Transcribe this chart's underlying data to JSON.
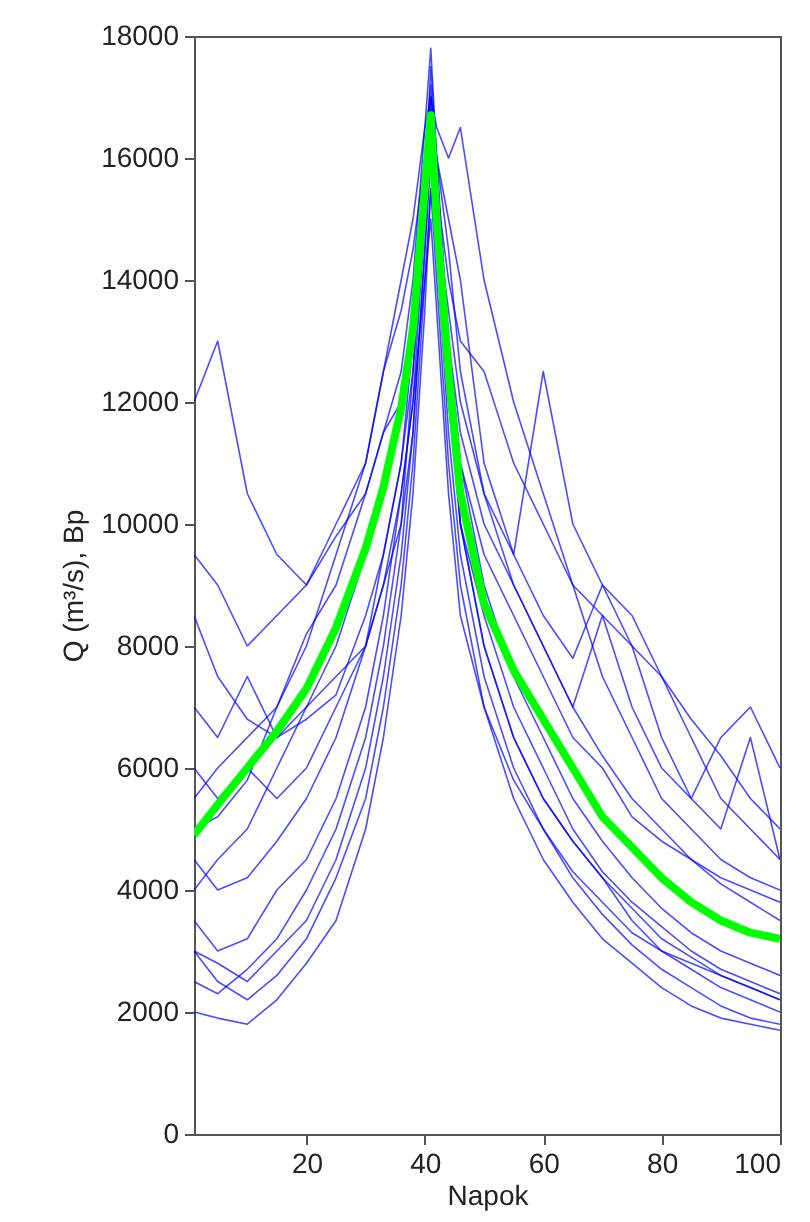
{
  "chart_data": {
    "type": "line",
    "xlabel": "Napok",
    "ylabel": "Q (m³/s), Bp",
    "xlim": [
      1,
      100
    ],
    "xticks": [
      20,
      40,
      60,
      80,
      100
    ],
    "ylim": [
      0,
      18000
    ],
    "yticks": [
      0,
      2000,
      4000,
      6000,
      8000,
      10000,
      12000,
      14000,
      16000,
      18000
    ],
    "grid": false,
    "marker": "none",
    "line_style": "solid",
    "x": [
      1,
      5,
      10,
      15,
      20,
      25,
      30,
      33,
      36,
      38,
      40,
      41,
      42,
      44,
      46,
      50,
      55,
      60,
      65,
      70,
      75,
      80,
      85,
      90,
      95,
      100
    ],
    "series": [
      {
        "color": "#0000ff",
        "values": [
          12000,
          13000,
          10500,
          9500,
          9000,
          9800,
          10500,
          11500,
          12500,
          14000,
          16500,
          17800,
          16000,
          13000,
          11000,
          9500,
          8500,
          7500,
          6500,
          6000,
          5200,
          4800,
          4500,
          4200,
          4000,
          3800
        ]
      },
      {
        "color": "#0000ff",
        "values": [
          3000,
          2800,
          2500,
          3000,
          3500,
          4500,
          6000,
          7500,
          9500,
          11500,
          14500,
          16000,
          14500,
          12000,
          10000,
          8000,
          6500,
          5500,
          4800,
          4200,
          3500,
          3000,
          2700,
          2400,
          2200,
          2000
        ]
      },
      {
        "color": "#0000ff",
        "values": [
          2000,
          1900,
          1800,
          2200,
          2800,
          3500,
          5000,
          6500,
          8500,
          10500,
          13500,
          15500,
          14000,
          11000,
          9000,
          7000,
          5500,
          4500,
          3800,
          3200,
          2800,
          2400,
          2100,
          1900,
          1800,
          1700
        ]
      },
      {
        "color": "#0000ff",
        "values": [
          8500,
          7500,
          6800,
          6500,
          7000,
          7500,
          8000,
          9000,
          10500,
          12000,
          15000,
          16500,
          15500,
          14000,
          13000,
          12500,
          11000,
          10000,
          9000,
          8500,
          8000,
          7500,
          6800,
          6200,
          5500,
          5000
        ]
      },
      {
        "color": "#0000ff",
        "values": [
          5500,
          6000,
          6500,
          7000,
          8000,
          9500,
          11000,
          12500,
          13500,
          14500,
          16000,
          17000,
          16500,
          16000,
          16500,
          14000,
          12000,
          10500,
          9000,
          7500,
          6500,
          5500,
          5000,
          4500,
          4200,
          4000
        ]
      },
      {
        "color": "#0000ff",
        "values": [
          4000,
          4500,
          5000,
          6000,
          7000,
          8000,
          9500,
          10500,
          12000,
          13000,
          15500,
          17500,
          16000,
          12500,
          10000,
          8500,
          7000,
          6000,
          5000,
          4300,
          3800,
          3400,
          3000,
          2700,
          2500,
          2300
        ]
      },
      {
        "color": "#0000ff",
        "values": [
          7000,
          6500,
          7500,
          6500,
          6800,
          7200,
          8500,
          9500,
          11000,
          12500,
          15000,
          16000,
          15000,
          13000,
          11500,
          10000,
          9000,
          8000,
          7000,
          8500,
          7000,
          6000,
          5500,
          5000,
          6500,
          4500
        ]
      },
      {
        "color": "#0000ff",
        "values": [
          3500,
          3000,
          3200,
          4000,
          4500,
          5500,
          7000,
          8500,
          10500,
          12000,
          14000,
          15000,
          13500,
          10500,
          8500,
          7000,
          5800,
          5000,
          4300,
          3800,
          3300,
          3000,
          2800,
          2600,
          2400,
          2200
        ]
      },
      {
        "color": "#0000ff",
        "values": [
          2500,
          2300,
          2700,
          3200,
          4000,
          5000,
          6500,
          8000,
          10000,
          12500,
          15500,
          17000,
          15000,
          12500,
          10000,
          8000,
          6500,
          5500,
          4800,
          4200,
          3700,
          3200,
          2900,
          2600,
          2400,
          2200
        ]
      },
      {
        "color": "#0000ff",
        "values": [
          6000,
          5500,
          6000,
          5500,
          6000,
          7000,
          8000,
          9000,
          10000,
          11500,
          14500,
          16200,
          15000,
          13500,
          12000,
          10500,
          9500,
          12500,
          10000,
          9000,
          8500,
          7500,
          6500,
          5500,
          5000,
          4500
        ]
      },
      {
        "color": "#0000ff",
        "values": [
          4500,
          4000,
          4200,
          4800,
          5500,
          6500,
          8000,
          9500,
          11000,
          13000,
          16000,
          17200,
          15800,
          13000,
          11000,
          9000,
          7500,
          6500,
          5500,
          4800,
          4200,
          3700,
          3300,
          3000,
          2800,
          2600
        ]
      },
      {
        "color": "#0000ff",
        "values": [
          9500,
          9000,
          8000,
          8500,
          9000,
          10000,
          11000,
          12500,
          14000,
          15000,
          16500,
          17000,
          16000,
          14500,
          12500,
          10500,
          9000,
          8000,
          7000,
          6200,
          5500,
          5000,
          4500,
          4100,
          3800,
          3500
        ]
      },
      {
        "color": "#0000ff",
        "values": [
          3000,
          2500,
          2200,
          2600,
          3200,
          4200,
          5500,
          7000,
          9000,
          11000,
          14000,
          15500,
          14500,
          11500,
          9500,
          7500,
          6000,
          5000,
          4200,
          3600,
          3100,
          2700,
          2400,
          2100,
          1900,
          1800
        ]
      },
      {
        "color": "#0000ff",
        "values": [
          5000,
          5200,
          5800,
          7000,
          8200,
          9000,
          10500,
          11500,
          12000,
          13500,
          15500,
          16800,
          16000,
          15000,
          14000,
          11000,
          9500,
          8500,
          7800,
          9000,
          8000,
          6500,
          5500,
          6500,
          7000,
          6000
        ]
      },
      {
        "color": "#00ff00",
        "values": [
          4900,
          5400,
          6000,
          6600,
          7300,
          8300,
          9600,
          10600,
          11900,
          13200,
          15500,
          16700,
          15000,
          12500,
          10500,
          8700,
          7600,
          6800,
          6000,
          5200,
          4700,
          4200,
          3800,
          3500,
          3300,
          3200
        ]
      }
    ]
  }
}
